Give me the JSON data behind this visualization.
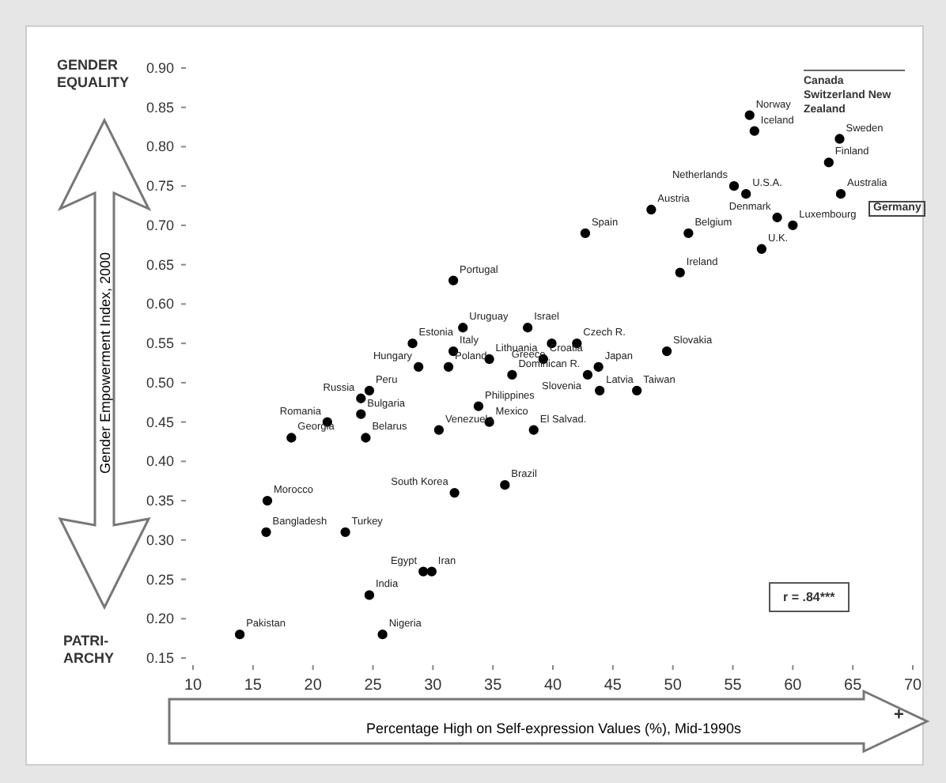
{
  "chart_data": {
    "type": "scatter",
    "title": "GENDER EQUALITY",
    "xlabel": "Percentage High on Self-expression Values (%), Mid-1990s",
    "ylabel": "Gender Empowerment Index, 2000",
    "color": "#000000",
    "marker": "circle",
    "x": [
      56.4,
      56.8,
      63.9,
      63,
      64,
      55.1,
      56.1,
      58.7,
      60,
      57.4,
      48.2,
      51.3,
      42.7,
      50.6,
      31.7,
      32.5,
      31.7,
      28.3,
      28.8,
      31.3,
      34.7,
      37.9,
      39.9,
      42,
      49.5,
      39.2,
      43.8,
      42.9,
      43.9,
      47,
      36.6,
      33.8,
      34.7,
      38.4,
      36,
      31.8,
      30.5,
      24.7,
      24,
      24,
      21.2,
      24.4,
      18.2,
      16.2,
      16.1,
      22.7,
      29.9,
      29.2,
      24.7,
      25.8,
      13.9
    ],
    "values": [
      0.84,
      0.82,
      0.81,
      0.78,
      0.74,
      0.75,
      0.74,
      0.71,
      0.7,
      0.67,
      0.72,
      0.69,
      0.69,
      0.64,
      0.63,
      0.57,
      0.54,
      0.55,
      0.52,
      0.52,
      0.53,
      0.57,
      0.55,
      0.55,
      0.54,
      0.53,
      0.52,
      0.51,
      0.49,
      0.49,
      0.51,
      0.47,
      0.45,
      0.44,
      0.37,
      0.36,
      0.44,
      0.49,
      0.48,
      0.46,
      0.45,
      0.43,
      0.43,
      0.35,
      0.31,
      0.31,
      0.26,
      0.26,
      0.23,
      0.18,
      0.18
    ],
    "xlim": [
      10,
      70
    ],
    "ylim": [
      0.15,
      0.9
    ],
    "xticks": [
      10,
      15,
      20,
      25,
      30,
      35,
      40,
      45,
      50,
      55,
      60,
      65,
      70
    ],
    "yticks": [
      {
        "value": 0.15,
        "label": "0.15"
      },
      {
        "value": 0.2,
        "label": "0.20"
      },
      {
        "value": 0.25,
        "label": "0.25"
      },
      {
        "value": 0.3,
        "label": "0.30"
      },
      {
        "value": 0.35,
        "label": "0.35"
      },
      {
        "value": 0.4,
        "label": "0.40"
      },
      {
        "value": 0.45,
        "label": "0.45"
      },
      {
        "value": 0.5,
        "label": "0.50"
      },
      {
        "value": 0.55,
        "label": "0.55"
      },
      {
        "value": 0.6,
        "label": "0.60"
      },
      {
        "value": 0.65,
        "label": "0.65"
      },
      {
        "value": 0.7,
        "label": "0.70"
      },
      {
        "value": 0.75,
        "label": "0.75"
      },
      {
        "value": 0.8,
        "label": "0.80"
      },
      {
        "value": 0.85,
        "label": "0.85"
      },
      {
        "value": 0.9,
        "label": "0.90"
      }
    ],
    "annotations": [
      {
        "text": "Norway",
        "x": 56.4,
        "y": 0.84
      },
      {
        "text": "Iceland",
        "x": 56.8,
        "y": 0.82
      },
      {
        "text": "Sweden",
        "x": 63.9,
        "y": 0.81
      },
      {
        "text": "Finland",
        "x": 63,
        "y": 0.78
      },
      {
        "text": "Australia",
        "x": 64,
        "y": 0.74
      },
      {
        "text": "Netherlands",
        "x": 55.1,
        "y": 0.75
      },
      {
        "text": "U.S.A.",
        "x": 56.1,
        "y": 0.74
      },
      {
        "text": "Denmark",
        "x": 58.7,
        "y": 0.71
      },
      {
        "text": "Luxembourg",
        "x": 60,
        "y": 0.7
      },
      {
        "text": "U.K.",
        "x": 57.4,
        "y": 0.67
      },
      {
        "text": "Austria",
        "x": 48.2,
        "y": 0.72
      },
      {
        "text": "Belgium",
        "x": 51.3,
        "y": 0.69
      },
      {
        "text": "Spain",
        "x": 42.7,
        "y": 0.69
      },
      {
        "text": "Ireland",
        "x": 50.6,
        "y": 0.64
      },
      {
        "text": "Portugal",
        "x": 31.7,
        "y": 0.63
      },
      {
        "text": "Uruguay",
        "x": 32.5,
        "y": 0.57
      },
      {
        "text": "Italy",
        "x": 31.7,
        "y": 0.54
      },
      {
        "text": "Estonia",
        "x": 28.3,
        "y": 0.55
      },
      {
        "text": "Hungary",
        "x": 28.8,
        "y": 0.52
      },
      {
        "text": "Poland",
        "x": 31.3,
        "y": 0.52
      },
      {
        "text": "Lithuania",
        "x": 34.7,
        "y": 0.53
      },
      {
        "text": "Israel",
        "x": 37.9,
        "y": 0.57
      },
      {
        "text": "Greece",
        "x": 39.9,
        "y": 0.55
      },
      {
        "text": "Czech R.",
        "x": 42,
        "y": 0.55
      },
      {
        "text": "Slovakia",
        "x": 49.5,
        "y": 0.54
      },
      {
        "text": "Croatia",
        "x": 39.2,
        "y": 0.53
      },
      {
        "text": "Japan",
        "x": 43.8,
        "y": 0.52
      },
      {
        "text": "Slovenia",
        "x": 42.9,
        "y": 0.51
      },
      {
        "text": "Latvia",
        "x": 43.9,
        "y": 0.49
      },
      {
        "text": "Taiwan",
        "x": 47,
        "y": 0.49
      },
      {
        "text": "Dominican R.",
        "x": 36.6,
        "y": 0.51
      },
      {
        "text": "Philippines",
        "x": 33.8,
        "y": 0.47
      },
      {
        "text": "Mexico",
        "x": 34.7,
        "y": 0.45
      },
      {
        "text": "El Salvad.",
        "x": 38.4,
        "y": 0.44
      },
      {
        "text": "Brazil",
        "x": 36,
        "y": 0.37
      },
      {
        "text": "South Korea",
        "x": 31.8,
        "y": 0.36
      },
      {
        "text": "Venezuela",
        "x": 30.5,
        "y": 0.44
      },
      {
        "text": "Peru",
        "x": 24.7,
        "y": 0.49
      },
      {
        "text": "Russia",
        "x": 24,
        "y": 0.48
      },
      {
        "text": "Bulgaria",
        "x": 24,
        "y": 0.46
      },
      {
        "text": "Romania",
        "x": 21.2,
        "y": 0.45
      },
      {
        "text": "Belarus",
        "x": 24.4,
        "y": 0.43
      },
      {
        "text": "Georgia",
        "x": 18.2,
        "y": 0.43
      },
      {
        "text": "Morocco",
        "x": 16.2,
        "y": 0.35
      },
      {
        "text": "Bangladesh",
        "x": 16.1,
        "y": 0.31
      },
      {
        "text": "Turkey",
        "x": 22.7,
        "y": 0.31
      },
      {
        "text": "Iran",
        "x": 29.9,
        "y": 0.26
      },
      {
        "text": "Egypt",
        "x": 29.2,
        "y": 0.26
      },
      {
        "text": "India",
        "x": 24.7,
        "y": 0.23
      },
      {
        "text": "Nigeria",
        "x": 25.8,
        "y": 0.18
      },
      {
        "text": "Pakistan",
        "x": 13.9,
        "y": 0.18
      },
      "PATRI-ARCHY",
      "Canada Switzerland New Zealand",
      "Germany",
      "r = .84***",
      "+"
    ]
  }
}
